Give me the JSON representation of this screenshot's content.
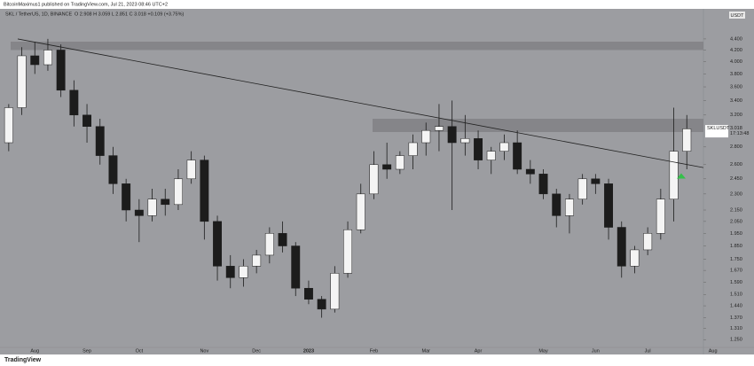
{
  "chart_data": {
    "type": "candlestick",
    "title": "BitcoinMaximus1 published on TradingView.com, Jul 21, 2023 08:46 UTC+2",
    "subtitle": "SKL / TetherUS, 1D, BINANCE",
    "legend_text": "O 2.908 H 3.059 L 2.851 C 3.018 +0.109 (+3.75%)",
    "currency": "USDT",
    "symbol": "SKLUSDT",
    "last_price": 3.018,
    "countdown": "17:13:48",
    "footer": "TradingView",
    "categories": [
      null,
      null,
      "Aug",
      null,
      null,
      null,
      "Sep",
      null,
      null,
      null,
      "Oct",
      null,
      null,
      null,
      null,
      "Nov",
      null,
      null,
      null,
      "Dec",
      null,
      null,
      null,
      "2023",
      null,
      null,
      null,
      null,
      "Feb",
      null,
      null,
      null,
      "Mar",
      null,
      null,
      null,
      "Apr",
      null,
      null,
      null,
      null,
      "May",
      null,
      null,
      null,
      "Jun",
      null,
      null,
      null,
      "Jul",
      null,
      null,
      null,
      null,
      "Aug"
    ],
    "open": [
      2.85,
      3.3,
      4.1,
      3.95,
      4.2,
      3.55,
      3.2,
      3.05,
      2.7,
      2.4,
      2.15,
      2.1,
      2.25,
      2.2,
      2.45,
      2.65,
      2.05,
      1.7,
      1.62,
      1.7,
      1.78,
      1.95,
      1.85,
      1.55,
      1.48,
      1.42,
      1.65,
      1.98,
      2.3,
      2.6,
      2.55,
      2.7,
      2.85,
      3.0,
      3.05,
      2.85,
      2.9,
      2.65,
      2.75,
      2.85,
      2.55,
      2.5,
      2.3,
      2.1,
      2.25,
      2.45,
      2.4,
      2.0,
      1.7,
      1.82,
      1.95,
      2.25,
      2.75,
      null,
      null
    ],
    "high": [
      3.35,
      4.25,
      4.35,
      4.4,
      4.3,
      3.7,
      3.35,
      3.15,
      2.8,
      2.45,
      2.25,
      2.35,
      2.35,
      2.55,
      2.75,
      2.7,
      2.1,
      1.78,
      1.75,
      1.82,
      2.0,
      2.05,
      1.88,
      1.6,
      1.5,
      1.7,
      2.05,
      2.4,
      2.75,
      2.85,
      2.75,
      2.95,
      3.1,
      3.35,
      3.4,
      3.2,
      3.0,
      2.8,
      2.95,
      3.0,
      2.65,
      2.55,
      2.35,
      2.3,
      2.5,
      2.5,
      2.45,
      2.05,
      1.85,
      2.0,
      2.35,
      3.3,
      3.2,
      null,
      null
    ],
    "low": [
      2.75,
      3.2,
      3.8,
      3.85,
      3.45,
      3.05,
      2.85,
      2.6,
      2.3,
      2.05,
      1.88,
      2.05,
      2.1,
      2.15,
      2.4,
      1.9,
      1.6,
      1.55,
      1.56,
      1.65,
      1.72,
      1.8,
      1.5,
      1.45,
      1.37,
      1.4,
      1.62,
      1.95,
      2.25,
      2.45,
      2.5,
      2.55,
      2.7,
      2.75,
      2.15,
      2.7,
      2.55,
      2.5,
      2.65,
      2.5,
      2.4,
      2.25,
      2.0,
      1.95,
      2.2,
      2.3,
      1.9,
      1.62,
      1.65,
      1.78,
      1.9,
      2.05,
      2.55,
      null,
      null
    ],
    "close": [
      3.3,
      4.1,
      3.95,
      4.2,
      3.55,
      3.2,
      3.05,
      2.7,
      2.4,
      2.15,
      2.1,
      2.25,
      2.2,
      2.45,
      2.65,
      2.05,
      1.7,
      1.62,
      1.7,
      1.78,
      1.95,
      1.85,
      1.55,
      1.48,
      1.42,
      1.65,
      1.98,
      2.3,
      2.6,
      2.55,
      2.7,
      2.85,
      3.0,
      3.05,
      2.85,
      2.9,
      2.65,
      2.75,
      2.85,
      2.55,
      2.5,
      2.3,
      2.1,
      2.25,
      2.45,
      2.4,
      2.0,
      1.7,
      1.82,
      1.95,
      2.25,
      2.75,
      3.02,
      null,
      null
    ],
    "up_color": "#f4f4f4",
    "down_color": "#1c1c1c",
    "log": true,
    "ylim": [
      1.21,
      4.99
    ],
    "yticks": [
      {
        "value": 4.4,
        "label": "4.400"
      },
      {
        "value": 4.2,
        "label": "4.200"
      },
      {
        "value": 4.0,
        "label": "4.000"
      },
      {
        "value": 3.8,
        "label": "3.800"
      },
      {
        "value": 3.6,
        "label": "3.600"
      },
      {
        "value": 3.4,
        "label": "3.400"
      },
      {
        "value": 3.2,
        "label": "3.200"
      },
      {
        "value": 2.8,
        "label": "2.800"
      },
      {
        "value": 2.6,
        "label": "2.600"
      },
      {
        "value": 2.45,
        "label": "2.450"
      },
      {
        "value": 2.3,
        "label": "2.300"
      },
      {
        "value": 2.15,
        "label": "2.150"
      },
      {
        "value": 2.05,
        "label": "2.050"
      },
      {
        "value": 1.95,
        "label": "1.950"
      },
      {
        "value": 1.85,
        "label": "1.850"
      },
      {
        "value": 1.75,
        "label": "1.750"
      },
      {
        "value": 1.67,
        "label": "1.670"
      },
      {
        "value": 1.59,
        "label": "1.590"
      },
      {
        "value": 1.51,
        "label": "1.510"
      },
      {
        "value": 1.44,
        "label": "1.440"
      },
      {
        "value": 1.37,
        "label": "1.370"
      },
      {
        "value": 1.31,
        "label": "1.310"
      },
      {
        "value": 1.25,
        "label": "1.250"
      }
    ],
    "zones": [
      {
        "low": 4.2,
        "high": 4.35
      },
      {
        "low": 2.98,
        "high": 3.15
      }
    ],
    "trendline": {
      "start": 4.4,
      "end": 2.55
    },
    "signal": {
      "price": 2.48,
      "color": "#35c04a"
    }
  }
}
